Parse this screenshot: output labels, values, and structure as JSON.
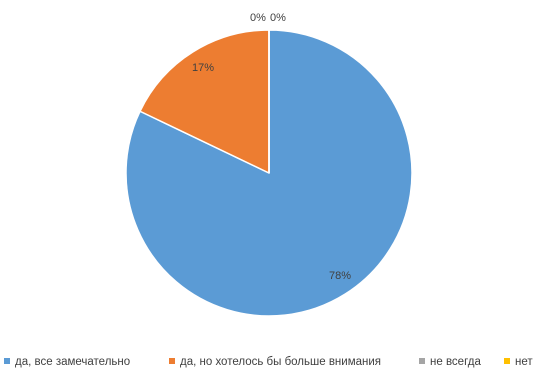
{
  "chart_data": {
    "type": "pie",
    "title": "",
    "legend_position": "bottom",
    "slices": [
      {
        "label": "да, все замечательно",
        "value": 78,
        "value_label": "78%",
        "color": "#5b9bd5"
      },
      {
        "label": "да, но хотелось бы больше внимания",
        "value": 17,
        "value_label": "17%",
        "color": "#ed7d31"
      },
      {
        "label": "не всегда",
        "value": 0,
        "value_label": "0%",
        "color": "#a5a5a5"
      },
      {
        "label": "нет",
        "value": 0,
        "value_label": "0%",
        "color": "#ffc000"
      }
    ]
  }
}
